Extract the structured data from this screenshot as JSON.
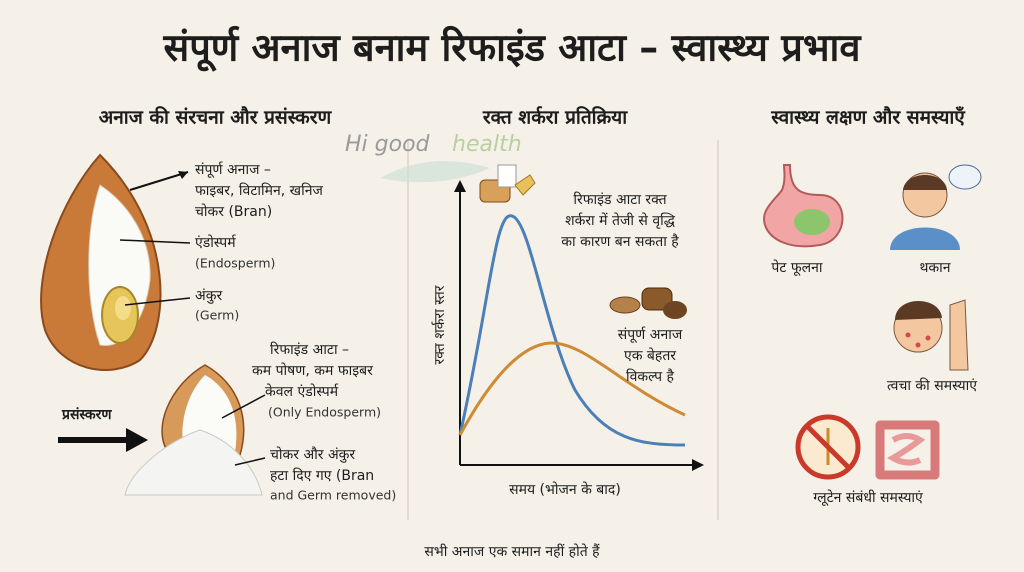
{
  "header": {
    "title": "संपूर्ण अनाज बनाम रिफाइंड आटा – स्वास्थ्य प्रभाव"
  },
  "watermark": {
    "part1": "Hi good",
    "part2": "health"
  },
  "structure": {
    "heading": "अनाज की संरचना और प्रसंस्करण",
    "whole_grain": [
      "संपूर्ण अनाज –",
      "फाइबर, विटामिन, खनिज",
      "चोकर (Bran)"
    ],
    "endosperm": [
      "एंडोस्पर्म",
      "(Endosperm)"
    ],
    "germ": [
      "अंकुर",
      "(Germ)"
    ],
    "refined": [
      "रिफाइंड आटा –",
      "कम पोषण, कम फाइबर",
      "केवल एंडोस्पर्म",
      "(Only Endosperm)"
    ],
    "processing": "प्रसंस्करण",
    "removed": [
      "चोकर और अंकुर",
      "हटा दिए गए (Bran",
      "and Germ removed)"
    ]
  },
  "blood_sugar": {
    "heading": "रक्त शर्करा प्रतिक्रिया",
    "y_label": "रक्त शर्करा स्तर",
    "x_label": "समय (भोजन के बाद)",
    "refined_note": [
      "रिफाइंड आटा रक्त",
      "शर्करा में तेजी से वृद्धि",
      "का कारण बन सकता है"
    ],
    "whole_note": [
      "संपूर्ण अनाज",
      "एक बेहतर",
      "विकल्प है"
    ]
  },
  "symptoms": {
    "heading": "स्वास्थ्य लक्षण और समस्याएँ",
    "items": [
      "पेट फूलना",
      "थकान",
      "त्वचा की समस्याएं",
      "ग्लूटेन संबंधी समस्याएं"
    ]
  },
  "footer": "सभी अनाज एक समान नहीं होते हैं"
}
